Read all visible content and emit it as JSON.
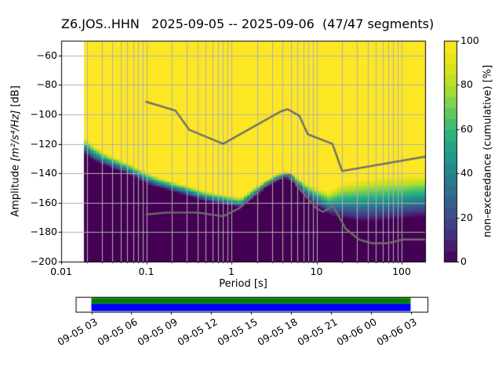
{
  "figure": {
    "background": "#ffffff"
  },
  "chart_data": {
    "type": "heatmap",
    "title": "Z6.JOS..HHN   2025-09-05 -- 2025-09-06  (47/47 segments)",
    "station_id": "Z6.JOS..HHN",
    "date_range": "2025-09-05 -- 2025-09-06",
    "segments": "47/47 segments",
    "xlabel": "Period [s]",
    "ylabel_prefix": "Amplitude ",
    "ylabel_math": "[m²/s⁴/Hz]",
    "ylabel_suffix": " [dB]",
    "x_scale": "log",
    "xlim": [
      0.01,
      189
    ],
    "ylim_db": [
      -200,
      -50
    ],
    "grid": "on",
    "grid_color": "#b0b0b0",
    "x_ticks": [
      {
        "v": 0.01,
        "label": "0.01"
      },
      {
        "v": 0.1,
        "label": "0.1"
      },
      {
        "v": 1,
        "label": "1"
      },
      {
        "v": 10,
        "label": "10"
      },
      {
        "v": 100,
        "label": "100"
      }
    ],
    "y_ticks": [
      {
        "v": -60,
        "label": "−60"
      },
      {
        "v": -80,
        "label": "−80"
      },
      {
        "v": -100,
        "label": "−100"
      },
      {
        "v": -120,
        "label": "−120"
      },
      {
        "v": -140,
        "label": "−140"
      },
      {
        "v": -160,
        "label": "−160"
      },
      {
        "v": -180,
        "label": "−180"
      },
      {
        "v": -200,
        "label": "−200"
      }
    ],
    "colorbar": {
      "label": "non-exceedance (cumulative) [%]",
      "levels": 20,
      "ticks": [
        {
          "v": 0,
          "label": "0"
        },
        {
          "v": 20,
          "label": "20"
        },
        {
          "v": 40,
          "label": "40"
        },
        {
          "v": 60,
          "label": "60"
        },
        {
          "v": 80,
          "label": "80"
        },
        {
          "v": 100,
          "label": "100"
        }
      ]
    },
    "colormap_stops": [
      [
        0.0,
        "#440154"
      ],
      [
        0.1,
        "#482878"
      ],
      [
        0.2,
        "#3e4989"
      ],
      [
        0.3,
        "#31688e"
      ],
      [
        0.4,
        "#26828e"
      ],
      [
        0.5,
        "#1f9e89"
      ],
      [
        0.6,
        "#35b779"
      ],
      [
        0.7,
        "#6ece58"
      ],
      [
        0.8,
        "#b5de2b"
      ],
      [
        0.9,
        "#dfe318"
      ],
      [
        1.0,
        "#fde725"
      ]
    ],
    "period_bin_start": 0.0185,
    "period_bin_step_octaves": 0.125,
    "db_bin_step": 1.25,
    "cumulative_boundary": [
      [
        0.0185,
        -121.0,
        11
      ],
      [
        0.025,
        -126.5,
        10
      ],
      [
        0.035,
        -131.0,
        9
      ],
      [
        0.05,
        -134.5,
        8
      ],
      [
        0.07,
        -138.0,
        8
      ],
      [
        0.1,
        -143.0,
        8
      ],
      [
        0.14,
        -146.0,
        7.5
      ],
      [
        0.2,
        -148.5,
        7
      ],
      [
        0.3,
        -151.5,
        7
      ],
      [
        0.45,
        -154.5,
        7
      ],
      [
        0.65,
        -156.5,
        7
      ],
      [
        0.9,
        -158.0,
        7
      ],
      [
        1.3,
        -159.5,
        7
      ],
      [
        1.8,
        -153.5,
        7
      ],
      [
        2.6,
        -146.5,
        6
      ],
      [
        3.5,
        -142.5,
        5
      ],
      [
        4.3,
        -140.5,
        5
      ],
      [
        5.2,
        -142.5,
        6
      ],
      [
        6.5,
        -148.0,
        8
      ],
      [
        8.0,
        -152.5,
        10
      ],
      [
        10.0,
        -155.5,
        12
      ],
      [
        14.0,
        -160.0,
        16
      ],
      [
        20.0,
        -158.5,
        24
      ],
      [
        30.0,
        -158.5,
        28
      ],
      [
        45.0,
        -158.0,
        30
      ],
      [
        70.0,
        -157.0,
        30
      ],
      [
        100.0,
        -156.5,
        29
      ],
      [
        140.0,
        -155.5,
        29
      ],
      [
        189.0,
        -155.0,
        29
      ]
    ],
    "noise_models": {
      "color": "#6e6e6e",
      "nhnm": [
        [
          0.1,
          -91.5
        ],
        [
          0.22,
          -97.4
        ],
        [
          0.32,
          -110.5
        ],
        [
          0.8,
          -120.0
        ],
        [
          3.8,
          -98.0
        ],
        [
          4.6,
          -96.5
        ],
        [
          6.3,
          -101.0
        ],
        [
          7.9,
          -113.5
        ],
        [
          15.4,
          -120.0
        ],
        [
          20.0,
          -138.5
        ],
        [
          189.0,
          -128.7
        ]
      ],
      "nlnm": [
        [
          0.1,
          -168.0
        ],
        [
          0.17,
          -166.7
        ],
        [
          0.4,
          -166.7
        ],
        [
          0.8,
          -169.2
        ],
        [
          1.24,
          -163.7
        ],
        [
          2.4,
          -148.6
        ],
        [
          4.3,
          -141.1
        ],
        [
          5.0,
          -141.1
        ],
        [
          6.0,
          -149.0
        ],
        [
          10.0,
          -163.8
        ],
        [
          12.0,
          -166.2
        ],
        [
          15.6,
          -162.1
        ],
        [
          21.9,
          -177.5
        ],
        [
          31.6,
          -185.0
        ],
        [
          45.0,
          -187.5
        ],
        [
          70.0,
          -187.5
        ],
        [
          101.0,
          -185.0
        ],
        [
          154.0,
          -185.0
        ],
        [
          189.0,
          -185.0
        ]
      ]
    }
  },
  "timeline": {
    "coverage_top_color": "#008000",
    "coverage_bottom_color": "#0000ff",
    "labels": [
      "09-05 03",
      "09-05 06",
      "09-05 09",
      "09-05 12",
      "09-05 15",
      "09-05 18",
      "09-05 21",
      "09-06 00",
      "09-06 03"
    ]
  }
}
